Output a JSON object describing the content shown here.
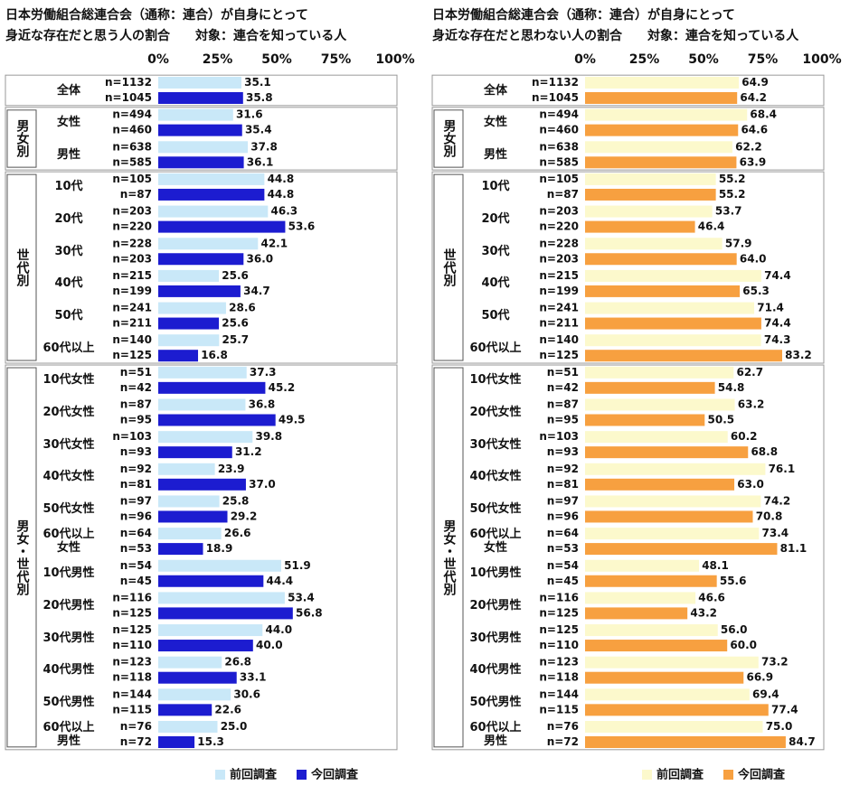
{
  "chart_data": [
    {
      "type": "bar",
      "orientation": "horizontal",
      "title": "日本労働組合総連合会（通称：連合）が自身にとって",
      "subtitle": "身近な存在だと思う人の割合　　対象：連合を知っている人",
      "groups": [
        {
          "label": null,
          "categories": [
            "全体"
          ]
        },
        {
          "label": "男女別",
          "categories": [
            "女性",
            "男性"
          ]
        },
        {
          "label": "世代別",
          "categories": [
            "10代",
            "20代",
            "30代",
            "40代",
            "50代",
            "60代以上"
          ]
        },
        {
          "label": "男女・世代別",
          "categories": [
            "10代女性",
            "20代女性",
            "30代女性",
            "40代女性",
            "50代女性",
            "60代以上\n女性",
            "10代男性",
            "20代男性",
            "30代男性",
            "40代男性",
            "50代男性",
            "60代以上\n男性"
          ]
        }
      ],
      "series": [
        {
          "name": "前回調査",
          "color": "#c9e8f8",
          "n_labels": [
            "n=1132",
            "n=494",
            "n=638",
            "n=105",
            "n=203",
            "n=228",
            "n=215",
            "n=241",
            "n=140",
            "n=51",
            "n=87",
            "n=103",
            "n=92",
            "n=97",
            "n=64",
            "n=54",
            "n=116",
            "n=125",
            "n=123",
            "n=144",
            "n=76"
          ],
          "values": [
            35.1,
            31.6,
            37.8,
            44.8,
            46.3,
            42.1,
            25.6,
            28.6,
            25.7,
            37.3,
            36.8,
            39.8,
            23.9,
            25.8,
            26.6,
            51.9,
            53.4,
            44.0,
            26.8,
            30.6,
            25.0
          ],
          "value_labels": [
            "35.1",
            "31.6",
            "37.8",
            "44.8",
            "46.3",
            "42.1",
            "25.6",
            "28.6",
            "25.7",
            "37.3",
            "36.8",
            "39.8",
            "23.9",
            "25.8",
            "26.6",
            "51.9",
            "53.4",
            "44.0",
            "26.8",
            "30.6",
            "25.0"
          ]
        },
        {
          "name": "今回調査",
          "color": "#1c1cd0",
          "n_labels": [
            "n=1045",
            "n=460",
            "n=585",
            "n=87",
            "n=220",
            "n=203",
            "n=199",
            "n=211",
            "n=125",
            "n=42",
            "n=95",
            "n=93",
            "n=81",
            "n=96",
            "n=53",
            "n=45",
            "n=125",
            "n=110",
            "n=118",
            "n=115",
            "n=72"
          ],
          "values": [
            35.8,
            35.4,
            36.1,
            44.8,
            53.6,
            36.0,
            34.7,
            25.6,
            16.8,
            45.2,
            49.5,
            31.2,
            37.0,
            29.2,
            18.9,
            44.4,
            56.8,
            40.0,
            33.1,
            22.6,
            15.3
          ],
          "value_labels": [
            "35.8",
            "35.4",
            "36.1",
            "44.8",
            "53.6",
            "36.0",
            "34.7",
            "25.6",
            "16.8",
            "45.2",
            "49.5",
            "31.2",
            "37.0",
            "29.2",
            "18.9",
            "44.4",
            "56.8",
            "40.0",
            "33.1",
            "22.6",
            "15.3"
          ]
        }
      ],
      "xlim": [
        0,
        100
      ],
      "xticks": [
        {
          "value": 0,
          "label": "0%"
        },
        {
          "value": 25,
          "label": "25%"
        },
        {
          "value": 50,
          "label": "50%"
        },
        {
          "value": 75,
          "label": "75%"
        },
        {
          "value": 100,
          "label": "100%"
        }
      ],
      "legend": "bottom"
    },
    {
      "type": "bar",
      "orientation": "horizontal",
      "title": "日本労働組合総連合会（通称：連合）が自身にとって",
      "subtitle": "身近な存在だと思わない人の割合　　対象：連合を知っている人",
      "groups": [
        {
          "label": null,
          "categories": [
            "全体"
          ]
        },
        {
          "label": "男女別",
          "categories": [
            "女性",
            "男性"
          ]
        },
        {
          "label": "世代別",
          "categories": [
            "10代",
            "20代",
            "30代",
            "40代",
            "50代",
            "60代以上"
          ]
        },
        {
          "label": "男女・世代別",
          "categories": [
            "10代女性",
            "20代女性",
            "30代女性",
            "40代女性",
            "50代女性",
            "60代以上\n女性",
            "10代男性",
            "20代男性",
            "30代男性",
            "40代男性",
            "50代男性",
            "60代以上\n男性"
          ]
        }
      ],
      "series": [
        {
          "name": "前回調査",
          "color": "#fcf9cc",
          "n_labels": [
            "n=1132",
            "n=494",
            "n=638",
            "n=105",
            "n=203",
            "n=228",
            "n=215",
            "n=241",
            "n=140",
            "n=51",
            "n=87",
            "n=103",
            "n=92",
            "n=97",
            "n=64",
            "n=54",
            "n=116",
            "n=125",
            "n=123",
            "n=144",
            "n=76"
          ],
          "values": [
            64.9,
            68.4,
            62.2,
            55.2,
            53.7,
            57.9,
            74.4,
            71.4,
            74.3,
            62.7,
            63.2,
            60.2,
            76.1,
            74.2,
            73.4,
            48.1,
            46.6,
            56.0,
            73.2,
            69.4,
            75.0
          ],
          "value_labels": [
            "64.9",
            "68.4",
            "62.2",
            "55.2",
            "53.7",
            "57.9",
            "74.4",
            "71.4",
            "74.3",
            "62.7",
            "63.2",
            "60.2",
            "76.1",
            "74.2",
            "73.4",
            "48.1",
            "46.6",
            "56.0",
            "73.2",
            "69.4",
            "75.0"
          ]
        },
        {
          "name": "今回調査",
          "color": "#f7a040",
          "n_labels": [
            "n=1045",
            "n=460",
            "n=585",
            "n=87",
            "n=220",
            "n=203",
            "n=199",
            "n=211",
            "n=125",
            "n=42",
            "n=95",
            "n=93",
            "n=81",
            "n=96",
            "n=53",
            "n=45",
            "n=125",
            "n=110",
            "n=118",
            "n=115",
            "n=72"
          ],
          "values": [
            64.2,
            64.6,
            63.9,
            55.2,
            46.4,
            64.0,
            65.3,
            74.4,
            83.2,
            54.8,
            50.5,
            68.8,
            63.0,
            70.8,
            81.1,
            55.6,
            43.2,
            60.0,
            66.9,
            77.4,
            84.7
          ],
          "value_labels": [
            "64.2",
            "64.6",
            "63.9",
            "55.2",
            "46.4",
            "64.0",
            "65.3",
            "74.4",
            "83.2",
            "54.8",
            "50.5",
            "68.8",
            "63.0",
            "70.8",
            "81.1",
            "55.6",
            "43.2",
            "60.0",
            "66.9",
            "77.4",
            "84.7"
          ]
        }
      ],
      "xlim": [
        0,
        100
      ],
      "xticks": [
        {
          "value": 0,
          "label": "0%"
        },
        {
          "value": 25,
          "label": "25%"
        },
        {
          "value": 50,
          "label": "50%"
        },
        {
          "value": 75,
          "label": "75%"
        },
        {
          "value": 100,
          "label": "100%"
        }
      ],
      "legend": "bottom"
    }
  ]
}
